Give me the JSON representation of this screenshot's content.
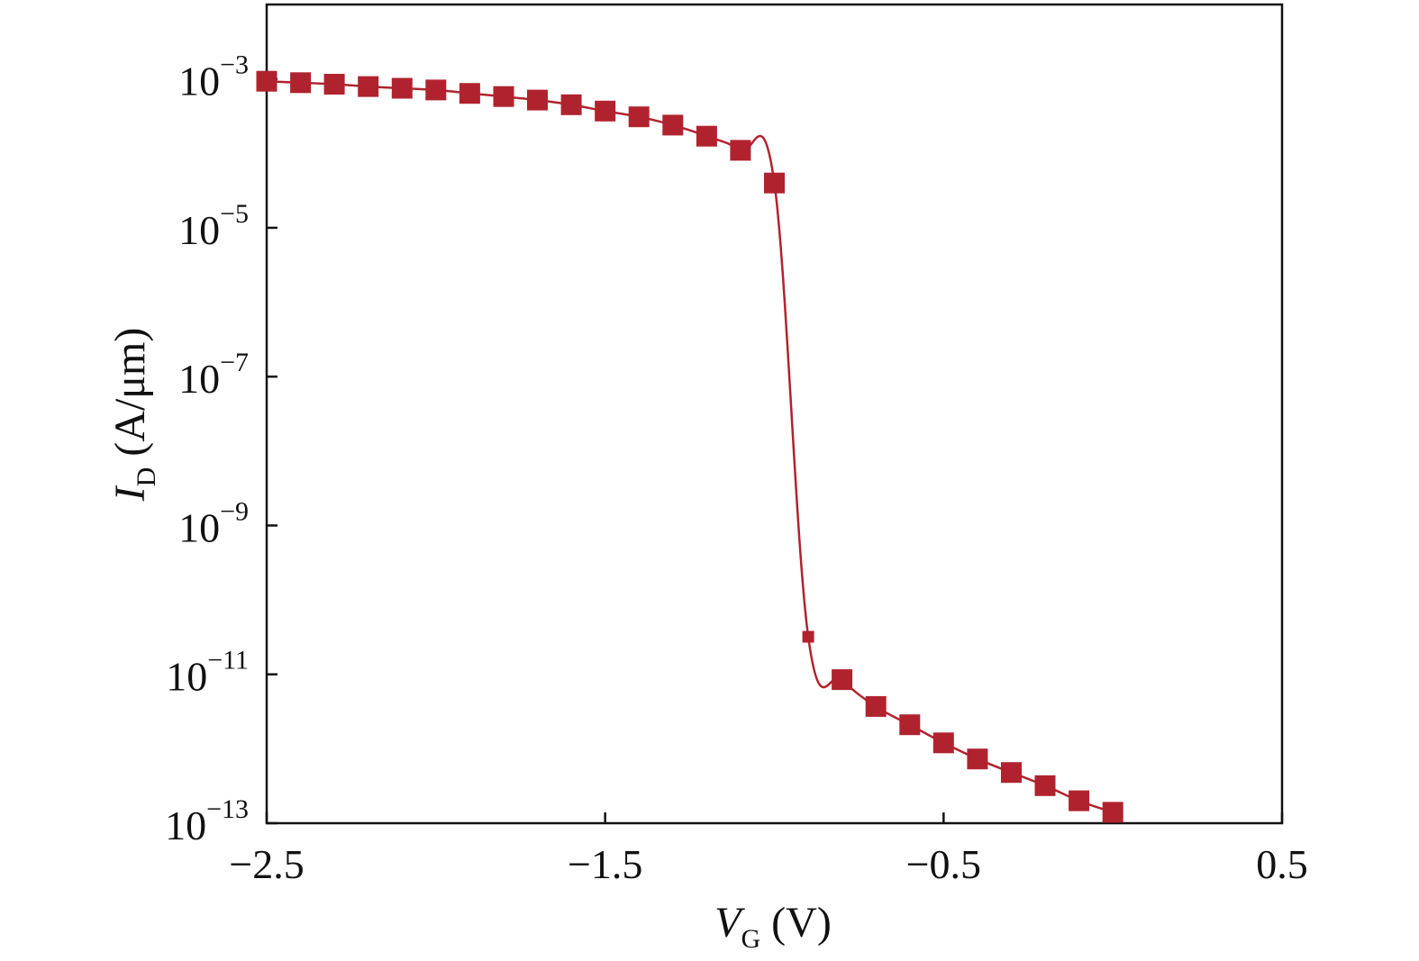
{
  "chart_data": {
    "type": "line",
    "title": "",
    "xlabel": {
      "symbol": "V",
      "subscript": "G",
      "unit": "(V)"
    },
    "ylabel": {
      "symbol": "I",
      "subscript": "D",
      "unit": "(A/μm)"
    },
    "x_ticks": [
      "−2.5",
      "−1.5",
      "−0.5",
      "0.5"
    ],
    "x_tick_values": [
      -2.5,
      -1.5,
      -0.5,
      0.5
    ],
    "y_ticks": [
      {
        "base": "10",
        "exp": "−13",
        "value": -13
      },
      {
        "base": "10",
        "exp": "−11",
        "value": -11
      },
      {
        "base": "10",
        "exp": "−9",
        "value": -9
      },
      {
        "base": "10",
        "exp": "−7",
        "value": -7
      },
      {
        "base": "10",
        "exp": "−5",
        "value": -5
      },
      {
        "base": "10",
        "exp": "−3",
        "value": -3
      }
    ],
    "xlim": [
      -2.5,
      0.5
    ],
    "ylim_log10": [
      -13,
      -2
    ],
    "y_scale": "log",
    "grid": false,
    "legend": "none",
    "color": "#b0232e",
    "marker": "square",
    "series": [
      {
        "x": [
          -2.5,
          -2.4,
          -2.3,
          -2.2,
          -2.1,
          -2.0,
          -1.9,
          -1.8,
          -1.7,
          -1.6,
          -1.5,
          -1.4,
          -1.3,
          -1.2,
          -1.1,
          -1.0,
          -0.9,
          -0.8,
          -0.7,
          -0.6,
          -0.5,
          -0.4,
          -0.3,
          -0.2,
          -0.1,
          0.0
        ],
        "y": [
          0.00093,
          0.00089,
          0.00085,
          0.00079,
          0.00075,
          0.00071,
          0.00064,
          0.00058,
          0.00052,
          0.00045,
          0.00037,
          0.00031,
          0.00024,
          0.00017,
          0.00011,
          4e-05,
          3.2e-11,
          8.5e-12,
          3.7e-12,
          2.1e-12,
          1.2e-12,
          7.3e-13,
          4.8e-13,
          3.2e-13,
          2e-13,
          1.4e-13
        ]
      }
    ]
  }
}
